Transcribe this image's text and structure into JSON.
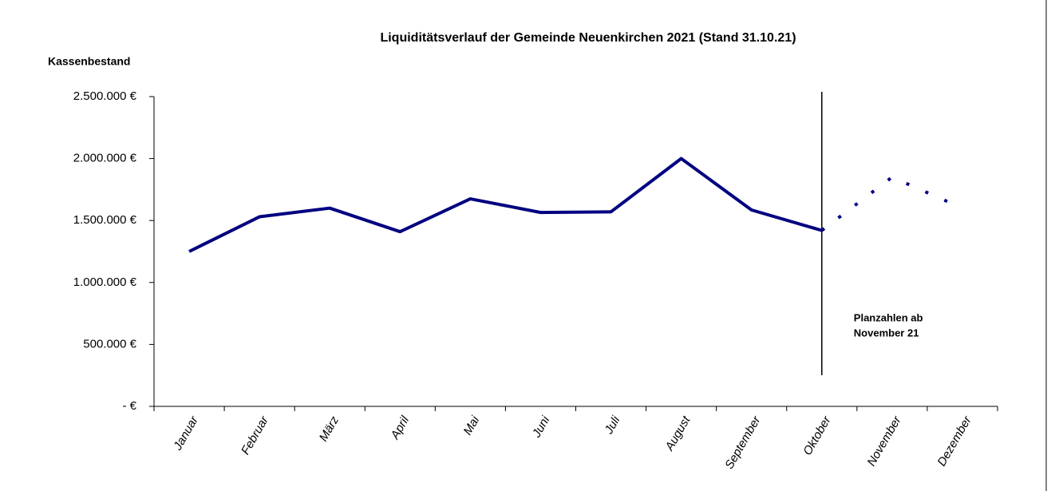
{
  "chart_data": {
    "type": "line",
    "title": "Liquiditätsverlauf  der Gemeinde Neuenkirchen 2021 (Stand 31.10.21)",
    "y_axis_label": "Kassenbestand",
    "categories": [
      "Januar",
      "Februar",
      "März",
      "April",
      "Mai",
      "Juni",
      "Juli",
      "August",
      "September",
      "Oktober",
      "November",
      "Dezember"
    ],
    "series": [
      {
        "color": "#000080",
        "values": [
          1250000,
          1530000,
          1600000,
          1410000,
          1675000,
          1565000,
          1570000,
          2000000,
          1585000,
          1420000,
          1850000,
          1600000
        ],
        "dotted": [
          false,
          false,
          false,
          false,
          false,
          false,
          false,
          false,
          false,
          false,
          true,
          true
        ]
      }
    ],
    "ylim": [
      0,
      2500000
    ],
    "yticks": [
      {
        "value": 0,
        "label": "- €"
      },
      {
        "value": 500000,
        "label": "500.000 €"
      },
      {
        "value": 1000000,
        "label": "1.000.000 €"
      },
      {
        "value": 1500000,
        "label": "1.500.000 €"
      },
      {
        "value": 2000000,
        "label": "2.000.000 €"
      },
      {
        "value": 2500000,
        "label": "2.500.000 €"
      }
    ],
    "vertical_line_at": "Oktober",
    "annotation": [
      "Planzahlen ab",
      "November 21"
    ],
    "grid": false
  }
}
